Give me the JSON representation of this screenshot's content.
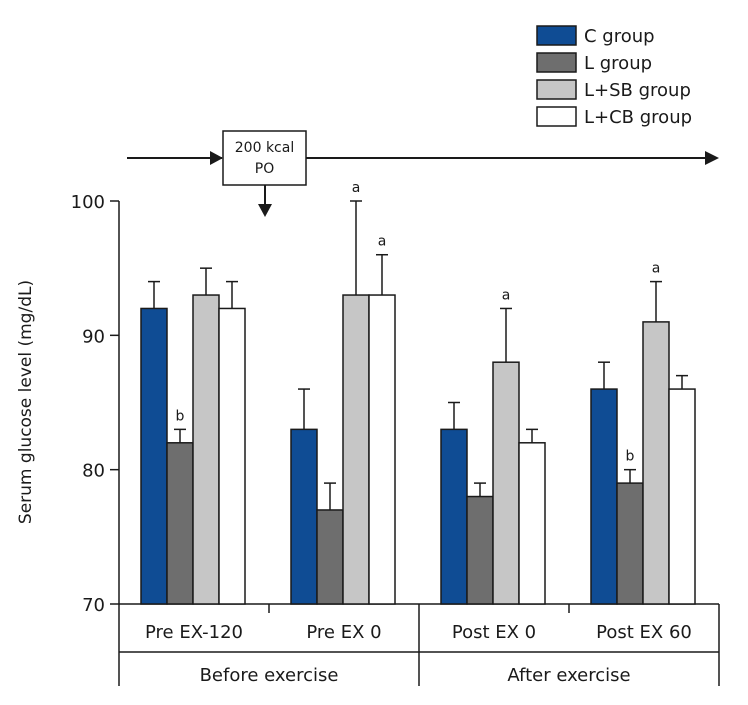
{
  "chart_data": {
    "type": "bar",
    "ylabel": "Serum glucose level (mg/dL)",
    "ylim": [
      70,
      100
    ],
    "yticks": [
      70,
      80,
      90,
      100
    ],
    "categories": [
      "Pre EX-120",
      "Pre EX 0",
      "Post EX 0",
      "Post EX 60"
    ],
    "phase_groups": [
      {
        "label": "Before exercise",
        "categories": [
          "Pre EX-120",
          "Pre EX 0"
        ]
      },
      {
        "label": "After exercise",
        "categories": [
          "Post EX 0",
          "Post EX 60"
        ]
      }
    ],
    "series": [
      {
        "name": "C group",
        "color": "#0f4c94",
        "values": [
          92,
          83,
          83,
          86
        ],
        "errors": [
          2,
          3,
          2,
          2
        ],
        "annotations": [
          "",
          "",
          "",
          ""
        ]
      },
      {
        "name": "L group",
        "color": "#6e6e6e",
        "values": [
          82,
          77,
          78,
          79
        ],
        "errors": [
          1,
          2,
          1,
          1
        ],
        "annotations": [
          "b",
          "",
          "",
          "b"
        ]
      },
      {
        "name": "L+SB group",
        "color": "#c6c6c6",
        "values": [
          93,
          93,
          88,
          91
        ],
        "errors": [
          2,
          7,
          4,
          3
        ],
        "annotations": [
          "",
          "a",
          "a",
          "a"
        ]
      },
      {
        "name": "L+CB group",
        "color": "#ffffff",
        "values": [
          92,
          93,
          82,
          86
        ],
        "errors": [
          2,
          3,
          1,
          1
        ],
        "annotations": [
          "",
          "a",
          "",
          ""
        ]
      }
    ],
    "intervention": {
      "line1": "200 kcal",
      "line2": "PO"
    }
  }
}
